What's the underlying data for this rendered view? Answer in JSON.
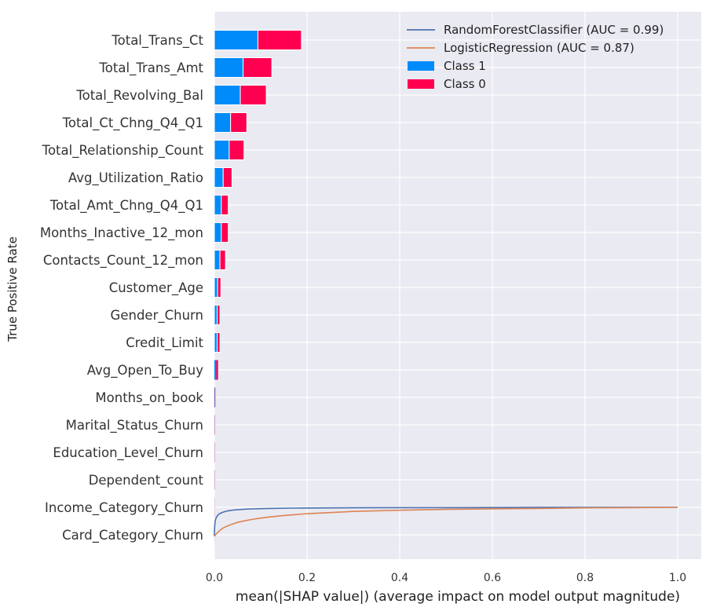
{
  "chart_data": {
    "type": "bar",
    "orientation": "horizontal",
    "stacked": true,
    "xlabel": "mean(|SHAP value|) (average impact on model output magnitude)",
    "ylabel": "True Positive Rate",
    "xlim": [
      0,
      1.0
    ],
    "xticks": [
      "0.0",
      "0.2",
      "0.4",
      "0.6",
      "0.8",
      "1.0"
    ],
    "grid": true,
    "legend_position": "top-right",
    "categories": [
      "Total_Trans_Ct",
      "Total_Trans_Amt",
      "Total_Revolving_Bal",
      "Total_Ct_Chng_Q4_Q1",
      "Total_Relationship_Count",
      "Avg_Utilization_Ratio",
      "Total_Amt_Chng_Q4_Q1",
      "Months_Inactive_12_mon",
      "Contacts_Count_12_mon",
      "Customer_Age",
      "Gender_Churn",
      "Credit_Limit",
      "Avg_Open_To_Buy",
      "Months_on_book",
      "Marital_Status_Churn",
      "Education_Level_Churn",
      "Dependent_count",
      "Income_Category_Churn",
      "Card_Category_Churn"
    ],
    "series": [
      {
        "name": "Class 1",
        "color": "#008bfb",
        "values": [
          0.094,
          0.062,
          0.056,
          0.035,
          0.032,
          0.019,
          0.015,
          0.015,
          0.012,
          0.007,
          0.006,
          0.006,
          0.004,
          0.001,
          0.0005,
          0.0004,
          0.0004,
          0.0002,
          0.0001
        ]
      },
      {
        "name": "Class 0",
        "color": "#ff0051",
        "values": [
          0.094,
          0.062,
          0.056,
          0.035,
          0.032,
          0.019,
          0.015,
          0.015,
          0.012,
          0.007,
          0.006,
          0.006,
          0.004,
          0.001,
          0.0005,
          0.0004,
          0.0004,
          0.0002,
          0.0001
        ]
      }
    ],
    "lines": [
      {
        "name": "RandomForestClassifier (AUC = 0.99)",
        "color": "#4c72b0",
        "x": [
          0,
          0.0005,
          0.001,
          0.002,
          0.004,
          0.007,
          0.01,
          0.015,
          0.02,
          0.03,
          0.04,
          0.06,
          0.08,
          0.1,
          0.13,
          0.17,
          0.22,
          0.3,
          0.4,
          0.5,
          0.6,
          0.7,
          0.8,
          0.9,
          1.0
        ],
        "y": [
          0,
          0.3,
          0.42,
          0.55,
          0.65,
          0.72,
          0.77,
          0.81,
          0.84,
          0.88,
          0.905,
          0.93,
          0.945,
          0.955,
          0.965,
          0.972,
          0.978,
          0.984,
          0.988,
          0.99,
          0.993,
          0.996,
          0.998,
          0.999,
          1.0
        ]
      },
      {
        "name": "LogisticRegression (AUC = 0.87)",
        "color": "#dd8452",
        "x": [
          0,
          0.002,
          0.005,
          0.01,
          0.015,
          0.02,
          0.03,
          0.04,
          0.05,
          0.06,
          0.08,
          0.1,
          0.12,
          0.15,
          0.2,
          0.25,
          0.3,
          0.35,
          0.4,
          0.5,
          0.6,
          0.7,
          0.8,
          0.9,
          1.0
        ],
        "y": [
          0,
          0.05,
          0.1,
          0.18,
          0.25,
          0.3,
          0.37,
          0.43,
          0.48,
          0.52,
          0.58,
          0.63,
          0.67,
          0.72,
          0.78,
          0.82,
          0.86,
          0.88,
          0.9,
          0.93,
          0.95,
          0.96,
          0.98,
          0.99,
          1.0
        ]
      }
    ],
    "legend": [
      {
        "label": "RandomForestClassifier (AUC = 0.99)",
        "kind": "line",
        "color": "#4c72b0"
      },
      {
        "label": "LogisticRegression (AUC = 0.87)",
        "kind": "line",
        "color": "#dd8452"
      },
      {
        "label": "Class 1",
        "kind": "patch",
        "color": "#008bfb"
      },
      {
        "label": "Class 0",
        "kind": "patch",
        "color": "#ff0051"
      }
    ],
    "background_color": "#eaeaf2",
    "grid_color": "#ffffff"
  }
}
